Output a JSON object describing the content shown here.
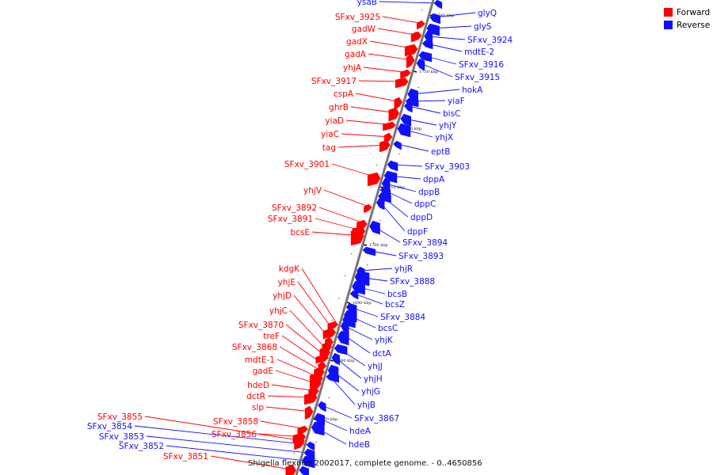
{
  "genome_map": {
    "title": "Shigella flexneri 2002017, complete genome. - 0..4650856",
    "strand_colors": {
      "forward": "#ff0000",
      "reverse": "#1010ff",
      "backbone": "#777777"
    },
    "legend": [
      {
        "label": "Forward",
        "color": "#ff0000"
      },
      {
        "label": "Reverse",
        "color": "#1010ff"
      }
    ],
    "ticks": [
      "1740 kbp",
      "1730 kbp",
      "1720 kbp",
      "1710 kbp",
      "1700 kbp",
      "1690 kbp",
      "1680 kbp",
      "1670 kbp"
    ],
    "forward_genes": [
      "SFxv_3925",
      "gadW",
      "gadX",
      "gadA",
      "yhjA",
      "SFxv_3917",
      "cspA",
      "ghrB",
      "yiaD",
      "yiaC",
      "tag",
      "SFxv_3901",
      "yhjV",
      "SFxv_3892",
      "SFxv_3891",
      "bcsE",
      "kdgK",
      "yhjE",
      "yhjD",
      "yhjC",
      "SFxv_3870",
      "treF",
      "SFxv_3868",
      "mdtE-1",
      "gadE",
      "hdeD",
      "dctR",
      "slp",
      "SFxv_3858",
      "SFxv_3856",
      "SFxv_3855",
      "SFxv_3851"
    ],
    "reverse_genes": [
      "ysaB",
      "glyQ",
      "glyS",
      "SFxv_3924",
      "mdtE-2",
      "SFxv_3916",
      "SFxv_3915",
      "hokA",
      "yiaF",
      "bisC",
      "yhjY",
      "yhjX",
      "eptB",
      "SFxv_3903",
      "dppA",
      "dppB",
      "dppC",
      "dppD",
      "dppF",
      "SFxv_3894",
      "SFxv_3893",
      "yhjR",
      "SFxv_3888",
      "bcsB",
      "bcsZ",
      "SFxv_3884",
      "bcsC",
      "yhjK",
      "dctA",
      "yhjJ",
      "yhjH",
      "yhjG",
      "yhjB",
      "SFxv_3867",
      "hdeA",
      "hdeB",
      "SFxv_3854",
      "SFxv_3853",
      "SFxv_3852"
    ]
  }
}
